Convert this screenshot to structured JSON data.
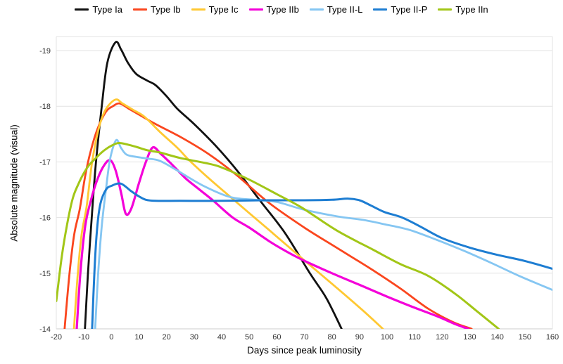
{
  "chart_data": {
    "type": "line",
    "title": "",
    "xlabel": "Days since peak luminosity",
    "ylabel": "Absolute magnitude (visual)",
    "x_range": [
      -20,
      160
    ],
    "y_range": [
      -14,
      -19.25
    ],
    "y_axis_inverted_magnitude": true,
    "grid": "horizontal-only",
    "legend_position": "top-center",
    "background_color": "#ffffff",
    "gridline_color": "#e3e3e3",
    "axis_line_color": "#cccccc",
    "tick_label_color": "#333333",
    "x_ticks": [
      -20,
      -10,
      0,
      10,
      20,
      30,
      40,
      50,
      60,
      70,
      80,
      90,
      100,
      110,
      120,
      130,
      140,
      150,
      160
    ],
    "x_tick_labels": [
      "-20",
      "-10",
      "0",
      "10",
      "20",
      "30",
      "40",
      "50",
      "60",
      "70",
      "80",
      "90",
      "100",
      "110",
      "120",
      "130",
      "140",
      "150",
      "160"
    ],
    "y_ticks": [
      -19,
      -18,
      -17,
      -16,
      -15,
      -14
    ],
    "y_tick_labels": [
      "-19",
      "-18",
      "-17",
      "-16",
      "-15",
      "-14"
    ],
    "series": [
      {
        "name": "Type Ia",
        "color": "#111111",
        "width": 2.8,
        "points": [
          [
            -9.6,
            -14
          ],
          [
            -8.5,
            -15
          ],
          [
            -7,
            -16.1
          ],
          [
            -5.6,
            -17
          ],
          [
            -3.5,
            -18
          ],
          [
            -1.5,
            -18.78
          ],
          [
            1.5,
            -19.15
          ],
          [
            3.5,
            -19.02
          ],
          [
            6,
            -18.78
          ],
          [
            9,
            -18.58
          ],
          [
            13,
            -18.46
          ],
          [
            16,
            -18.38
          ],
          [
            20,
            -18.18
          ],
          [
            24,
            -17.95
          ],
          [
            30,
            -17.68
          ],
          [
            38,
            -17.28
          ],
          [
            46,
            -16.82
          ],
          [
            54,
            -16.3
          ],
          [
            63,
            -15.72
          ],
          [
            72,
            -15
          ],
          [
            78,
            -14.55
          ],
          [
            83.5,
            -14
          ]
        ]
      },
      {
        "name": "Type Ib",
        "color": "#fa461e",
        "width": 2.8,
        "points": [
          [
            -17,
            -14
          ],
          [
            -15.2,
            -15
          ],
          [
            -13.5,
            -15.7
          ],
          [
            -11.5,
            -16.15
          ],
          [
            -9.5,
            -16.75
          ],
          [
            -7.5,
            -17.2
          ],
          [
            -5,
            -17.6
          ],
          [
            -2,
            -17.9
          ],
          [
            0.5,
            -18
          ],
          [
            3,
            -18.05
          ],
          [
            6.5,
            -17.95
          ],
          [
            10,
            -17.85
          ],
          [
            16,
            -17.68
          ],
          [
            25,
            -17.45
          ],
          [
            35,
            -17.15
          ],
          [
            45,
            -16.78
          ],
          [
            57,
            -16.27
          ],
          [
            70,
            -15.82
          ],
          [
            82,
            -15.45
          ],
          [
            95,
            -15.05
          ],
          [
            105,
            -14.72
          ],
          [
            115,
            -14.36
          ],
          [
            124,
            -14.12
          ],
          [
            130.7,
            -14
          ]
        ]
      },
      {
        "name": "Type Ic",
        "color": "#ffc832",
        "width": 2.8,
        "points": [
          [
            -13.6,
            -14
          ],
          [
            -12.2,
            -15
          ],
          [
            -10.8,
            -15.7
          ],
          [
            -9,
            -16.2
          ],
          [
            -7,
            -17
          ],
          [
            -4.5,
            -17.62
          ],
          [
            -2,
            -17.95
          ],
          [
            1.5,
            -18.12
          ],
          [
            4,
            -18.05
          ],
          [
            8,
            -17.93
          ],
          [
            12,
            -17.81
          ],
          [
            18,
            -17.52
          ],
          [
            24,
            -17.25
          ],
          [
            28,
            -17.04
          ],
          [
            35,
            -16.72
          ],
          [
            42,
            -16.42
          ],
          [
            50,
            -16.08
          ],
          [
            59,
            -15.7
          ],
          [
            70,
            -15.23
          ],
          [
            80,
            -14.81
          ],
          [
            91,
            -14.34
          ],
          [
            98.5,
            -14
          ]
        ]
      },
      {
        "name": "Type IIb",
        "color": "#f400d9",
        "width": 3.2,
        "points": [
          [
            -12.6,
            -14
          ],
          [
            -11.2,
            -15.05
          ],
          [
            -9.5,
            -15.85
          ],
          [
            -7.5,
            -16.3
          ],
          [
            -5,
            -16.7
          ],
          [
            -2.5,
            -16.95
          ],
          [
            -0.4,
            -17.03
          ],
          [
            1.5,
            -16.85
          ],
          [
            3.5,
            -16.45
          ],
          [
            5.2,
            -16.07
          ],
          [
            7.2,
            -16.16
          ],
          [
            10,
            -16.62
          ],
          [
            12.5,
            -17
          ],
          [
            15,
            -17.26
          ],
          [
            18,
            -17.14
          ],
          [
            21,
            -17
          ],
          [
            23.4,
            -16.88
          ],
          [
            27,
            -16.7
          ],
          [
            32,
            -16.5
          ],
          [
            37,
            -16.3
          ],
          [
            44,
            -16
          ],
          [
            50,
            -15.82
          ],
          [
            58,
            -15.55
          ],
          [
            65,
            -15.35
          ],
          [
            71,
            -15.2
          ],
          [
            80,
            -15
          ],
          [
            91,
            -14.77
          ],
          [
            100,
            -14.58
          ],
          [
            110,
            -14.38
          ],
          [
            118,
            -14.23
          ],
          [
            125,
            -14.08
          ],
          [
            129.5,
            -14
          ]
        ]
      },
      {
        "name": "Type II-L",
        "color": "#85c6f2",
        "width": 2.8,
        "points": [
          [
            -5.9,
            -14
          ],
          [
            -4.8,
            -15
          ],
          [
            -3.5,
            -15.85
          ],
          [
            -2,
            -16.5
          ],
          [
            -0.5,
            -17.05
          ],
          [
            1.7,
            -17.39
          ],
          [
            3.5,
            -17.25
          ],
          [
            5.5,
            -17.13
          ],
          [
            9,
            -17.09
          ],
          [
            13,
            -17.06
          ],
          [
            17.5,
            -17.02
          ],
          [
            23.4,
            -16.86
          ],
          [
            33,
            -16.58
          ],
          [
            43,
            -16.37
          ],
          [
            52,
            -16.32
          ],
          [
            60,
            -16.28
          ],
          [
            70,
            -16.14
          ],
          [
            82,
            -16.02
          ],
          [
            91,
            -15.96
          ],
          [
            99,
            -15.88
          ],
          [
            108,
            -15.78
          ],
          [
            118,
            -15.6
          ],
          [
            128,
            -15.4
          ],
          [
            138,
            -15.18
          ],
          [
            148,
            -14.95
          ],
          [
            160,
            -14.7
          ]
        ]
      },
      {
        "name": "Type II-P",
        "color": "#1d7dd2",
        "width": 3.0,
        "points": [
          [
            -7,
            -14
          ],
          [
            -6.2,
            -15
          ],
          [
            -5.2,
            -15.8
          ],
          [
            -4,
            -16.25
          ],
          [
            -2,
            -16.5
          ],
          [
            0,
            -16.57
          ],
          [
            3.4,
            -16.61
          ],
          [
            7,
            -16.48
          ],
          [
            10,
            -16.38
          ],
          [
            12.5,
            -16.32
          ],
          [
            16,
            -16.3
          ],
          [
            25,
            -16.3
          ],
          [
            40,
            -16.3
          ],
          [
            55,
            -16.31
          ],
          [
            70,
            -16.31
          ],
          [
            80,
            -16.32
          ],
          [
            86,
            -16.34
          ],
          [
            90,
            -16.31
          ],
          [
            94,
            -16.22
          ],
          [
            99,
            -16.1
          ],
          [
            105.5,
            -16
          ],
          [
            112,
            -15.84
          ],
          [
            120,
            -15.63
          ],
          [
            130,
            -15.46
          ],
          [
            140,
            -15.33
          ],
          [
            150,
            -15.22
          ],
          [
            160,
            -15.08
          ]
        ]
      },
      {
        "name": "Type IIn",
        "color": "#a2c617",
        "width": 3.0,
        "points": [
          [
            -20,
            -14.5
          ],
          [
            -18,
            -15.3
          ],
          [
            -16,
            -15.9
          ],
          [
            -14,
            -16.35
          ],
          [
            -12,
            -16.6
          ],
          [
            -10,
            -16.8
          ],
          [
            -8,
            -16.95
          ],
          [
            -6,
            -17.05
          ],
          [
            -4,
            -17.15
          ],
          [
            -2,
            -17.23
          ],
          [
            0,
            -17.29
          ],
          [
            2.6,
            -17.34
          ],
          [
            6,
            -17.31
          ],
          [
            9,
            -17.27
          ],
          [
            13,
            -17.21
          ],
          [
            17.5,
            -17.17
          ],
          [
            25,
            -17.07
          ],
          [
            36,
            -16.96
          ],
          [
            41,
            -16.88
          ],
          [
            50,
            -16.68
          ],
          [
            60,
            -16.42
          ],
          [
            69,
            -16.18
          ],
          [
            82,
            -15.76
          ],
          [
            95,
            -15.42
          ],
          [
            105,
            -15.16
          ],
          [
            115,
            -14.95
          ],
          [
            125,
            -14.62
          ],
          [
            133,
            -14.3
          ],
          [
            140.5,
            -14
          ]
        ]
      }
    ]
  }
}
